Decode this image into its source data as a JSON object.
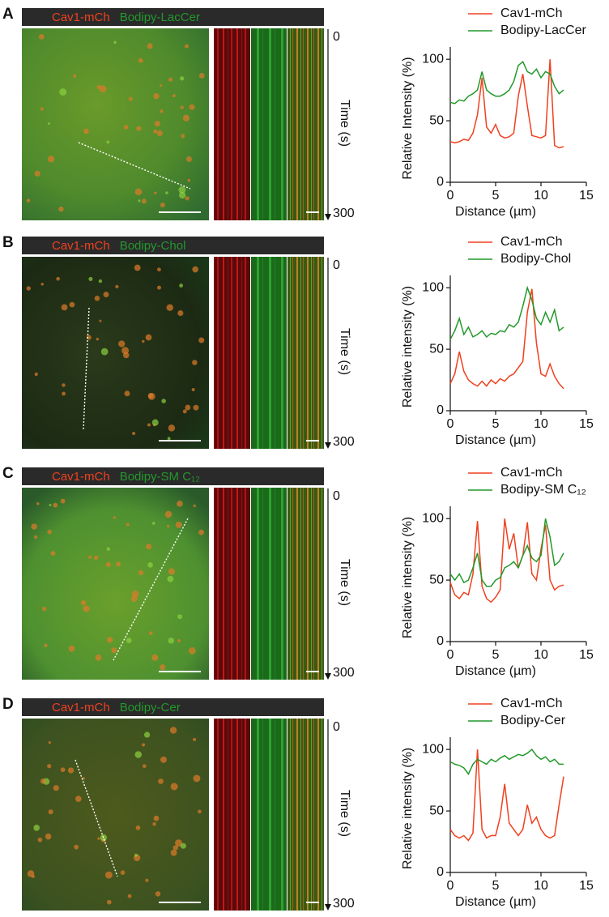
{
  "chart_data": [
    {
      "type": "line",
      "xlabel": "Distance (µm)",
      "ylabel": "Relative Intensity (%)",
      "x": [
        0,
        0.5,
        1,
        1.5,
        2,
        2.5,
        3,
        3.5,
        4,
        4.5,
        5,
        5.5,
        6,
        6.5,
        7,
        7.5,
        8,
        8.5,
        9,
        9.5,
        10,
        10.5,
        11,
        11.5,
        12,
        12.5
      ],
      "series": [
        {
          "name": "Cav1-mCh",
          "color": "#f0401e",
          "values": [
            33,
            32,
            33,
            35,
            34,
            40,
            55,
            85,
            45,
            40,
            47,
            38,
            36,
            37,
            40,
            70,
            88,
            62,
            38,
            37,
            36,
            38,
            100,
            30,
            28,
            29
          ]
        },
        {
          "name": "Bodipy-LacCer",
          "color": "#22992a",
          "values": [
            65,
            64,
            67,
            66,
            70,
            72,
            75,
            90,
            75,
            72,
            70,
            70,
            72,
            75,
            82,
            95,
            98,
            90,
            88,
            92,
            85,
            90,
            88,
            78,
            72,
            75
          ]
        }
      ],
      "xlim": [
        0,
        15
      ],
      "ylim": [
        0,
        110
      ],
      "xticks": [
        0,
        5,
        10,
        15
      ],
      "yticks": [
        0,
        50,
        100
      ],
      "legend": "top"
    },
    {
      "type": "line",
      "xlabel": "Distance (µm)",
      "ylabel": "Relative intensity (%)",
      "x": [
        0,
        0.5,
        1,
        1.5,
        2,
        2.5,
        3,
        3.5,
        4,
        4.5,
        5,
        5.5,
        6,
        6.5,
        7,
        7.5,
        8,
        8.5,
        9,
        9.5,
        10,
        10.5,
        11,
        11.5,
        12,
        12.5
      ],
      "series": [
        {
          "name": "Cav1-mCh",
          "color": "#f0401e",
          "values": [
            22,
            30,
            48,
            32,
            25,
            22,
            20,
            24,
            20,
            25,
            22,
            26,
            24,
            28,
            30,
            35,
            40,
            80,
            99,
            55,
            30,
            28,
            38,
            28,
            22,
            18
          ]
        },
        {
          "name": "Bodipy-Chol",
          "color": "#22992a",
          "values": [
            58,
            65,
            75,
            62,
            68,
            60,
            62,
            65,
            60,
            63,
            62,
            65,
            64,
            70,
            68,
            72,
            85,
            100,
            90,
            75,
            70,
            80,
            72,
            82,
            65,
            68
          ]
        }
      ],
      "xlim": [
        0,
        15
      ],
      "ylim": [
        0,
        110
      ],
      "xticks": [
        0,
        5,
        10,
        15
      ],
      "yticks": [
        0,
        50,
        100
      ],
      "legend": "top"
    },
    {
      "type": "line",
      "xlabel": "Distance (µm)",
      "ylabel": "Relative intensity (%)",
      "x": [
        0,
        0.5,
        1,
        1.5,
        2,
        2.5,
        3,
        3.5,
        4,
        4.5,
        5,
        5.5,
        6,
        6.5,
        7,
        7.5,
        8,
        8.5,
        9,
        9.5,
        10,
        10.5,
        11,
        11.5,
        12,
        12.5
      ],
      "series": [
        {
          "name": "Cav1-mCh",
          "color": "#f0401e",
          "values": [
            48,
            38,
            35,
            40,
            38,
            55,
            98,
            45,
            35,
            32,
            36,
            42,
            100,
            75,
            88,
            60,
            70,
            97,
            55,
            50,
            75,
            95,
            50,
            42,
            45,
            46
          ]
        },
        {
          "name": "Bodipy-SM C₁₂",
          "color": "#22992a",
          "values": [
            55,
            50,
            55,
            48,
            50,
            60,
            72,
            50,
            45,
            45,
            50,
            52,
            60,
            62,
            65,
            60,
            70,
            78,
            68,
            65,
            70,
            100,
            85,
            62,
            65,
            72
          ]
        }
      ],
      "xlim": [
        0,
        15
      ],
      "ylim": [
        0,
        110
      ],
      "xticks": [
        0,
        5,
        10,
        15
      ],
      "yticks": [
        0,
        50,
        100
      ],
      "legend": "top"
    },
    {
      "type": "line",
      "xlabel": "Distance (µm)",
      "ylabel": "Relative intensity (%)",
      "x": [
        0,
        0.5,
        1,
        1.5,
        2,
        2.5,
        3,
        3.5,
        4,
        4.5,
        5,
        5.5,
        6,
        6.5,
        7,
        7.5,
        8,
        8.5,
        9,
        9.5,
        10,
        10.5,
        11,
        11.5,
        12,
        12.5
      ],
      "series": [
        {
          "name": "Cav1-mCh",
          "color": "#f0401e",
          "values": [
            35,
            30,
            28,
            30,
            26,
            32,
            100,
            35,
            28,
            30,
            30,
            45,
            72,
            40,
            35,
            30,
            35,
            55,
            40,
            45,
            35,
            30,
            28,
            30,
            55,
            78
          ]
        },
        {
          "name": "Bodipy-Cer",
          "color": "#22992a",
          "values": [
            90,
            88,
            87,
            85,
            80,
            88,
            92,
            90,
            88,
            92,
            90,
            93,
            95,
            92,
            94,
            96,
            95,
            97,
            100,
            95,
            92,
            94,
            90,
            92,
            88,
            88
          ]
        }
      ],
      "xlim": [
        0,
        15
      ],
      "ylim": [
        0,
        110
      ],
      "xticks": [
        0,
        5,
        10,
        15
      ],
      "yticks": [
        0,
        50,
        100
      ],
      "legend": "top"
    }
  ],
  "panels": [
    {
      "letter": "A",
      "time_axis": {
        "start": 0,
        "label": "Time (s)",
        "end": 300
      }
    },
    {
      "letter": "B",
      "time_axis": {
        "start": 0,
        "label": "Time (s)",
        "end": 300
      }
    },
    {
      "letter": "C",
      "time_axis": {
        "start": 0,
        "label": "Time (s)",
        "end": 300
      }
    },
    {
      "letter": "D",
      "time_axis": {
        "start": 0,
        "label": "Time (s)",
        "end": 300
      }
    }
  ]
}
